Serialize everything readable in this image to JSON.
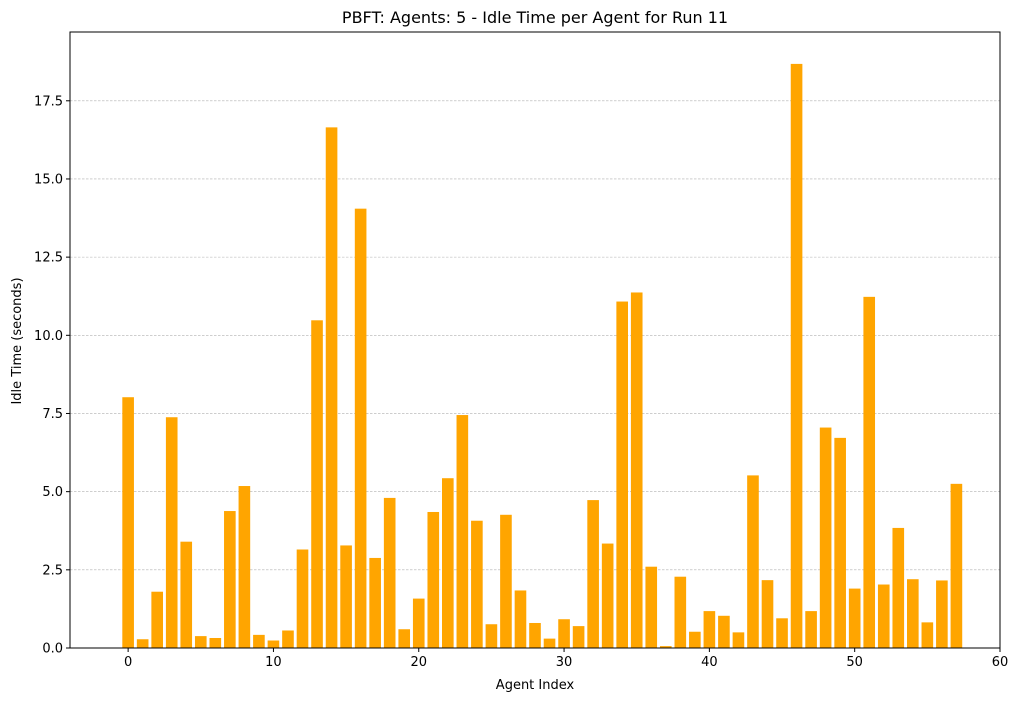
{
  "chart_data": {
    "type": "bar",
    "title": "PBFT: Agents: 5 - Idle Time per Agent for Run 11",
    "xlabel": "Agent Index",
    "ylabel": "Idle Time (seconds)",
    "xlim": [
      -4,
      60
    ],
    "ylim": [
      0,
      19.7
    ],
    "xticks": [
      0,
      10,
      20,
      30,
      40,
      50,
      60
    ],
    "xtick_labels": [
      "0",
      "10",
      "20",
      "30",
      "40",
      "50",
      "60"
    ],
    "yticks": [
      0,
      2.5,
      5,
      7.5,
      10,
      12.5,
      15,
      17.5
    ],
    "ytick_labels": [
      "0.0",
      "2.5",
      "5.0",
      "7.5",
      "10.0",
      "12.5",
      "15.0",
      "17.5"
    ],
    "grid": "horizontal dashed",
    "bar_color": "#ffa500",
    "x": [
      0,
      1,
      2,
      3,
      4,
      5,
      6,
      7,
      8,
      9,
      10,
      11,
      12,
      13,
      14,
      15,
      16,
      17,
      18,
      19,
      20,
      21,
      22,
      23,
      24,
      25,
      26,
      27,
      28,
      29,
      30,
      31,
      32,
      33,
      34,
      35,
      36,
      37,
      38,
      39,
      40,
      41,
      42,
      43,
      44,
      45,
      46,
      47,
      48,
      49,
      50,
      51,
      52,
      53,
      54,
      55,
      56,
      57
    ],
    "values": [
      8.02,
      0.28,
      1.8,
      7.38,
      3.4,
      0.38,
      0.32,
      4.38,
      5.18,
      0.42,
      0.24,
      0.56,
      3.15,
      10.48,
      16.65,
      3.28,
      14.05,
      2.88,
      4.8,
      0.6,
      1.58,
      4.35,
      5.43,
      7.45,
      4.07,
      0.76,
      4.26,
      1.84,
      0.8,
      0.3,
      0.92,
      0.7,
      4.73,
      3.34,
      11.08,
      11.37,
      2.6,
      0.06,
      2.28,
      0.52,
      1.18,
      1.03,
      0.5,
      5.52,
      2.17,
      0.95,
      18.68,
      1.18,
      7.05,
      6.72,
      1.9,
      11.23,
      2.03,
      3.84,
      2.2,
      0.82,
      2.16,
      5.25
    ]
  }
}
